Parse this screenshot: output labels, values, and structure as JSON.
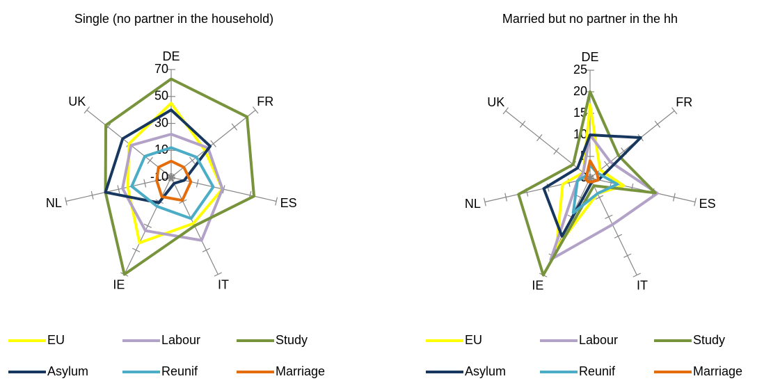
{
  "chart_data": [
    {
      "type": "radar",
      "title": "Single (no partner in the household)",
      "categories": [
        "DE",
        "FR",
        "ES",
        "IT",
        "IE",
        "NL",
        "UK"
      ],
      "ylim": [
        -10,
        70
      ],
      "yticks": [
        -10,
        10,
        30,
        50,
        70
      ],
      "series": [
        {
          "name": "EU",
          "color": "#ffff00",
          "values": [
            45,
            22,
            29,
            28,
            44,
            23,
            30
          ]
        },
        {
          "name": "Labour",
          "color": "#b3a2c7",
          "values": [
            22,
            25,
            29,
            42,
            34,
            27,
            28
          ]
        },
        {
          "name": "Study",
          "color": "#77933c",
          "values": [
            63,
            62,
            53,
            30,
            70,
            40,
            52
          ]
        },
        {
          "name": "Asylum",
          "color": "#17375e",
          "values": [
            40,
            27,
            0,
            -5,
            11,
            40,
            36
          ]
        },
        {
          "name": "Reunif",
          "color": "#4bacc6",
          "values": [
            12,
            14,
            22,
            24,
            14,
            20,
            15
          ]
        },
        {
          "name": "Marriage",
          "color": "#e46c0a",
          "values": [
            2,
            2,
            5,
            9,
            6,
            1,
            2
          ]
        }
      ]
    },
    {
      "type": "radar",
      "title": "Married but no partner in the hh",
      "categories": [
        "DE",
        "FR",
        "ES",
        "IT",
        "IE",
        "NL",
        "UK"
      ],
      "ylim": [
        0,
        25
      ],
      "yticks": [
        0,
        5,
        10,
        15,
        20,
        25
      ],
      "series": [
        {
          "name": "EU",
          "color": "#ffff00",
          "values": [
            17,
            3,
            8,
            4,
            18,
            6.5,
            2
          ]
        },
        {
          "name": "Labour",
          "color": "#b3a2c7",
          "values": [
            10,
            6,
            16,
            12,
            21,
            3,
            2
          ]
        },
        {
          "name": "Study",
          "color": "#77933c",
          "values": [
            20,
            8.4,
            15.5,
            2,
            25,
            17,
            5
          ]
        },
        {
          "name": "Asylum",
          "color": "#17375e",
          "values": [
            10,
            15,
            2,
            1,
            15,
            11,
            3.7
          ]
        },
        {
          "name": "Reunif",
          "color": "#4bacc6",
          "values": [
            3,
            2,
            6.5,
            4,
            9,
            3,
            1
          ]
        },
        {
          "name": "Marriage",
          "color": "#e46c0a",
          "values": [
            4,
            2,
            2,
            1,
            1,
            1,
            1
          ]
        }
      ]
    }
  ]
}
